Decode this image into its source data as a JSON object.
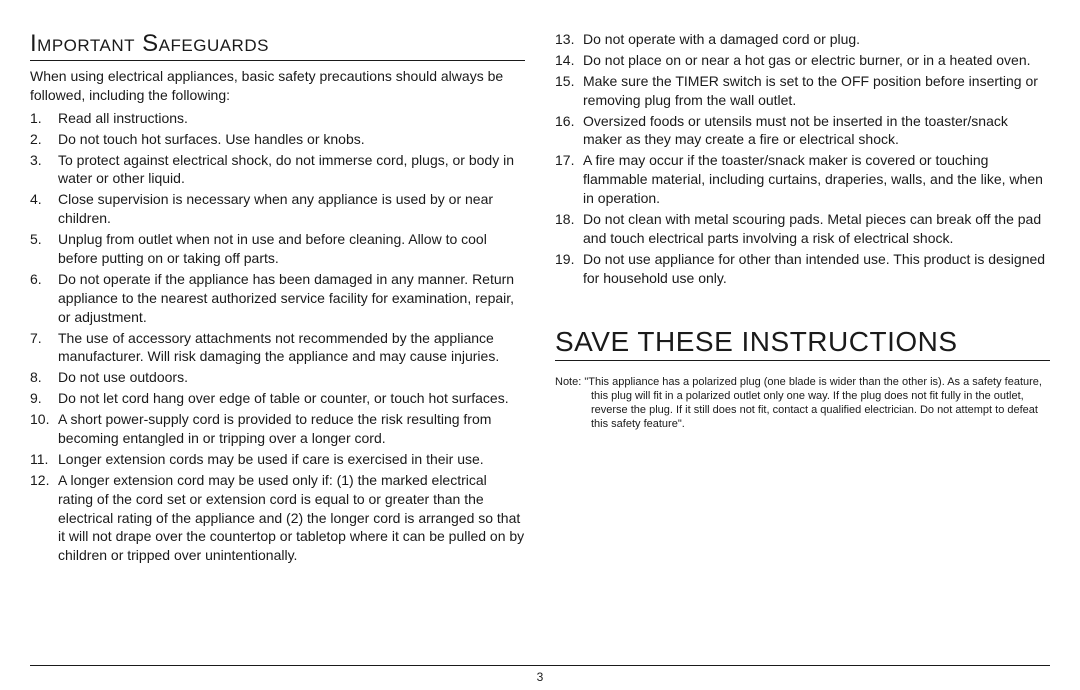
{
  "colors": {
    "text": "#1a1a1a",
    "background": "#ffffff",
    "rule": "#1a1a1a"
  },
  "typography": {
    "body_size_pt": 10.5,
    "heading1_size_pt": 18,
    "heading2_size_pt": 21,
    "note_size_pt": 8,
    "family": "Arial"
  },
  "heading_safeguards": "Important Safeguards",
  "intro": "When using electrical appliances, basic safety precautions should always be followed, including the following:",
  "items_left": [
    "Read all instructions.",
    "Do not touch hot surfaces.  Use handles or knobs.",
    "To protect against electrical shock, do not immerse cord, plugs, or body in water or other liquid.",
    "Close supervision is necessary when any appliance is used by or near children.",
    "Unplug from outlet when not in use and before cleaning.  Allow to cool before putting on or taking off parts.",
    "Do not operate if the appliance has been damaged in any manner. Return appliance to the nearest authorized service facility for examination, repair, or adjustment.",
    "The use of accessory attachments not recommended by the appliance manufacturer.  Will risk damaging the appliance and may cause injuries.",
    "Do not use outdoors.",
    "Do not let cord hang over edge of table or counter, or touch hot surfaces.",
    "A short power-supply cord is provided to reduce the risk resulting from becoming entangled in or tripping over a longer cord.",
    "Longer extension cords may be used if care is exercised in their use.",
    "A longer extension cord may be used only if: (1) the marked electrical rating of the cord set or extension cord is equal to or greater than the electrical rating of the appliance and (2) the longer cord is arranged so that it will not drape over the countertop or tabletop where it can be pulled on by children or tripped over unintentionally."
  ],
  "items_right": [
    "Do not operate with a damaged cord or plug.",
    "Do not place on or near a hot gas or electric burner, or in a heated oven.",
    "Make sure the TIMER switch is set to the OFF position before inserting or removing plug from the wall outlet.",
    "Oversized foods or utensils must not be inserted in the toaster/snack maker as they may create a fire or electrical shock.",
    "A fire may occur if the toaster/snack maker is covered or touching flammable material, including curtains, draperies, walls, and the like, when in operation.",
    "Do not clean with metal scouring pads.  Metal pieces can break off the pad and touch electrical parts involving a risk of electrical shock.",
    "Do not use appliance for other than intended use.  This product is designed for household use only."
  ],
  "heading_save": "SAVE THESE INSTRUCTIONS",
  "note_label": "Note:  ",
  "note_body": "\"This appliance has a polarized plug (one blade is wider than the other is). As a safety feature, this plug will fit in a polarized outlet only one way.  If the plug does not fit fully in the outlet, reverse the plug.  If it still does not fit, contact a qualified electrician.  Do not attempt to defeat this safety feature\".",
  "page_number": "3"
}
